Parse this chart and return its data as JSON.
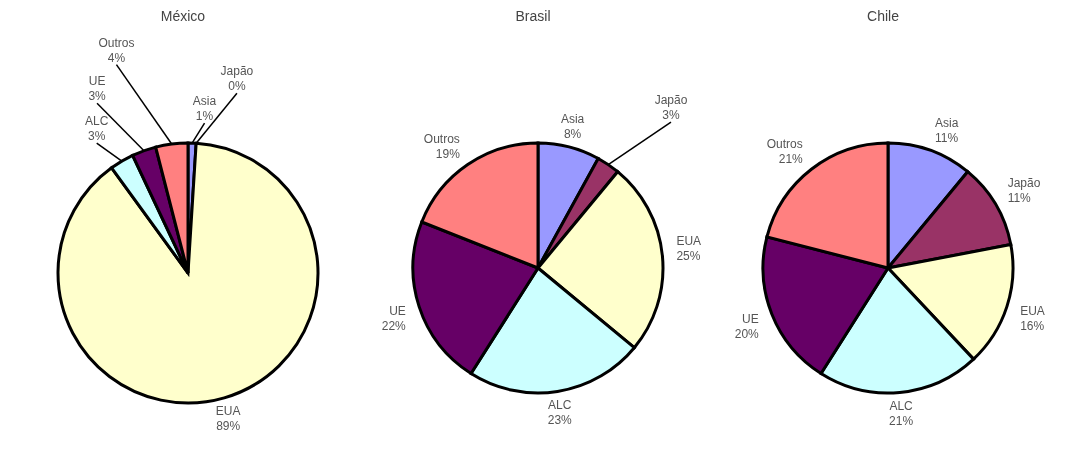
{
  "chart_data": [
    {
      "type": "pie",
      "title": "México",
      "categories": [
        "Asia",
        "Japão",
        "EUA",
        "ALC",
        "UE",
        "Outros"
      ],
      "values": [
        1,
        0,
        89,
        3,
        3,
        4
      ],
      "value_labels": [
        "1%",
        "0%",
        "89%",
        "3%",
        "3%",
        "4%"
      ],
      "colors": [
        "#9999ff",
        "#993366",
        "#ffffcc",
        "#ccffff",
        "#660066",
        "#ff8080"
      ]
    },
    {
      "type": "pie",
      "title": "Brasil",
      "categories": [
        "Asia",
        "Japão",
        "EUA",
        "ALC",
        "UE",
        "Outros"
      ],
      "values": [
        8,
        3,
        25,
        23,
        22,
        19
      ],
      "value_labels": [
        "8%",
        "3%",
        "25%",
        "23%",
        "22%",
        "19%"
      ],
      "colors": [
        "#9999ff",
        "#993366",
        "#ffffcc",
        "#ccffff",
        "#660066",
        "#ff8080"
      ]
    },
    {
      "type": "pie",
      "title": "Chile",
      "categories": [
        "Asia",
        "Japão",
        "EUA",
        "ALC",
        "UE",
        "Outros"
      ],
      "values": [
        11,
        11,
        16,
        21,
        20,
        21
      ],
      "value_labels": [
        "11%",
        "11%",
        "16%",
        "21%",
        "20%",
        "21%"
      ],
      "colors": [
        "#9999ff",
        "#993366",
        "#ffffcc",
        "#ccffff",
        "#660066",
        "#ff8080"
      ]
    }
  ]
}
